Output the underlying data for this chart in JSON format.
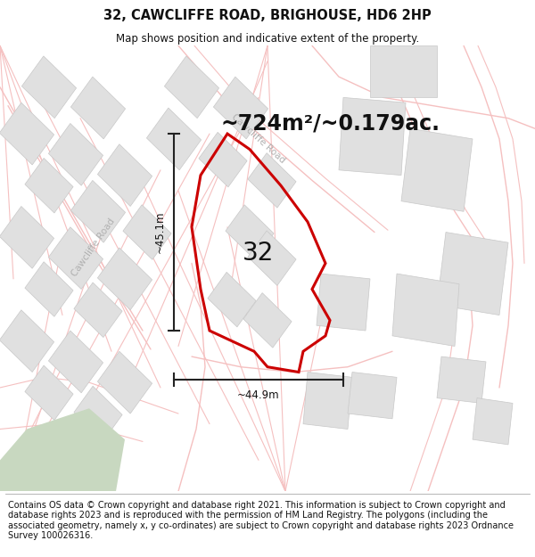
{
  "title_line1": "32, CAWCLIFFE ROAD, BRIGHOUSE, HD6 2HP",
  "title_line2": "Map shows position and indicative extent of the property.",
  "area_text": "~724m²/~0.179ac.",
  "label_number": "32",
  "dim_vertical": "~45.1m",
  "dim_horizontal": "~44.9m",
  "footer_text": "Contains OS data © Crown copyright and database right 2021. This information is subject to Crown copyright and database rights 2023 and is reproduced with the permission of HM Land Registry. The polygons (including the associated geometry, namely x, y co-ordinates) are subject to Crown copyright and database rights 2023 Ordnance Survey 100026316.",
  "bg_color": "#ffffff",
  "road_color": "#f5c0c0",
  "road_color_dark": "#e8b0b0",
  "building_fill": "#e0e0e0",
  "building_edge": "#c8c8c8",
  "plot_color": "#cc0000",
  "dim_color": "#222222",
  "road_label_color": "#b0b0b0",
  "green_color": "#c8d8c0",
  "header_bg": "#ffffff",
  "footer_bg": "#ffffff",
  "title_fontsize": 10.5,
  "subtitle_fontsize": 8.5,
  "area_fontsize": 17,
  "label_fontsize": 20,
  "dim_fontsize": 8.5,
  "road_label_fontsize": 7.5,
  "footer_fontsize": 7.0
}
